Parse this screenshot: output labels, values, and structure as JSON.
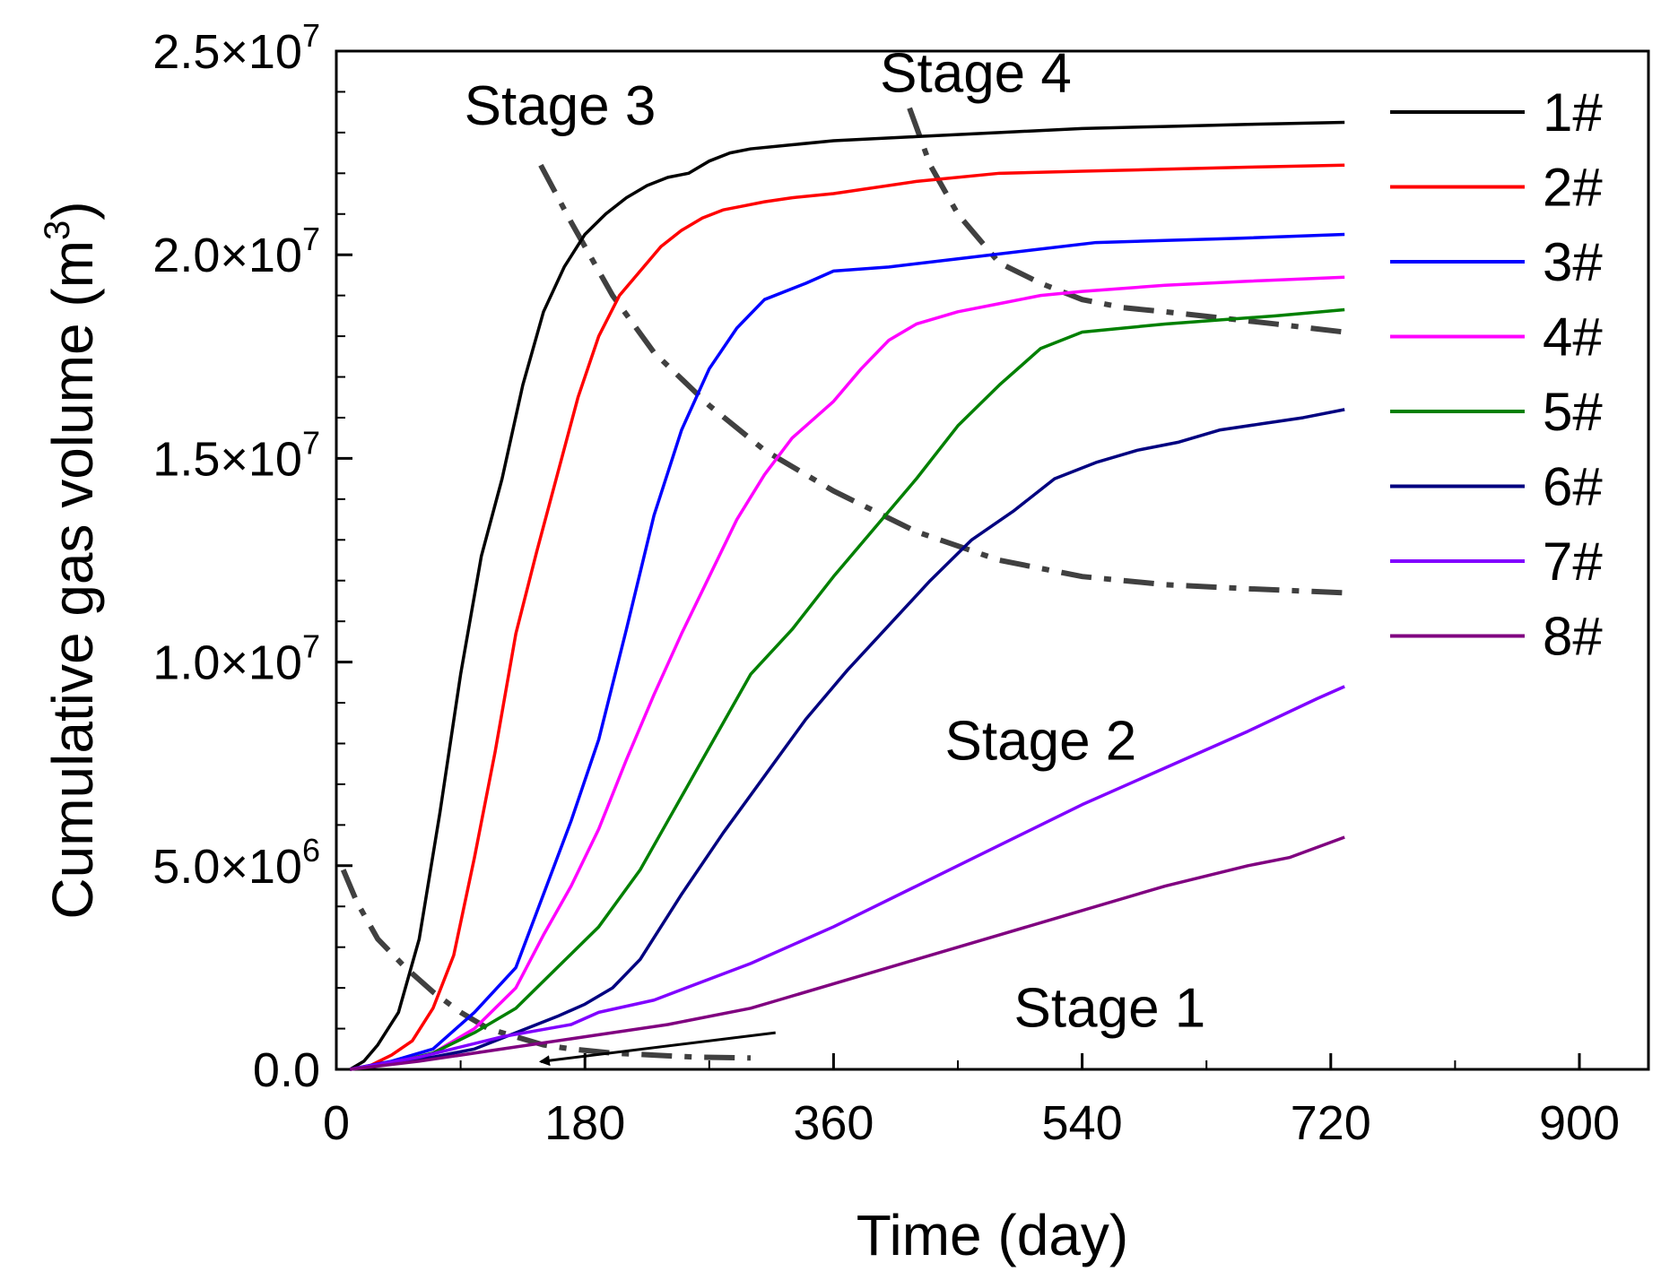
{
  "chart_data": {
    "type": "line",
    "xlabel": "Time (day)",
    "ylabel_main": "Cumulative gas volume (m",
    "ylabel_sup": "3",
    "ylabel_end": ")",
    "xlim": [
      0,
      950
    ],
    "ylim": [
      0,
      25000000
    ],
    "x_ticks": [
      {
        "value": 0,
        "label": "0"
      },
      {
        "value": 180,
        "label": "180"
      },
      {
        "value": 360,
        "label": "360"
      },
      {
        "value": 540,
        "label": "540"
      },
      {
        "value": 720,
        "label": "720"
      },
      {
        "value": 900,
        "label": "900"
      }
    ],
    "y_ticks": [
      {
        "value": 0,
        "mant": "0.0",
        "exp": ""
      },
      {
        "value": 5000000,
        "mant": "5.0×10",
        "exp": "6"
      },
      {
        "value": 10000000,
        "mant": "1.0×10",
        "exp": "7"
      },
      {
        "value": 15000000,
        "mant": "1.5×10",
        "exp": "7"
      },
      {
        "value": 20000000,
        "mant": "2.0×10",
        "exp": "7"
      },
      {
        "value": 25000000,
        "mant": "2.5×10",
        "exp": "7"
      }
    ],
    "grid": false,
    "legend_position": "top-right",
    "series": [
      {
        "name": "1#",
        "color": "#000000",
        "x": [
          10,
          20,
          30,
          45,
          60,
          75,
          90,
          105,
          120,
          135,
          150,
          165,
          180,
          195,
          210,
          225,
          240,
          255,
          270,
          285,
          300,
          330,
          360,
          420,
          480,
          540,
          600,
          660,
          730
        ],
        "y": [
          0,
          200000,
          600000,
          1400000,
          3200000,
          6300000,
          9700000,
          12600000,
          14500000,
          16800000,
          18600000,
          19700000,
          20500000,
          21000000,
          21400000,
          21700000,
          21900000,
          22000000,
          22300000,
          22500000,
          22600000,
          22700000,
          22800000,
          22900000,
          23000000,
          23100000,
          23150000,
          23200000,
          23250000
        ]
      },
      {
        "name": "2#",
        "color": "#ff0000",
        "x": [
          10,
          25,
          40,
          55,
          70,
          85,
          100,
          115,
          130,
          145,
          160,
          175,
          190,
          205,
          220,
          235,
          250,
          265,
          280,
          295,
          310,
          330,
          360,
          420,
          480,
          540,
          600,
          660,
          730
        ],
        "y": [
          0,
          100000,
          350000,
          700000,
          1500000,
          2800000,
          5200000,
          7800000,
          10700000,
          12700000,
          14600000,
          16500000,
          18000000,
          19000000,
          19600000,
          20200000,
          20600000,
          20900000,
          21100000,
          21200000,
          21300000,
          21400000,
          21500000,
          21800000,
          22000000,
          22050000,
          22100000,
          22150000,
          22200000
        ]
      },
      {
        "name": "3#",
        "color": "#0000ff",
        "x": [
          10,
          40,
          70,
          100,
          130,
          150,
          170,
          190,
          210,
          230,
          250,
          270,
          290,
          310,
          340,
          360,
          400,
          450,
          500,
          550,
          600,
          650,
          730
        ],
        "y": [
          0,
          200000,
          500000,
          1400000,
          2500000,
          4300000,
          6100000,
          8100000,
          10800000,
          13600000,
          15700000,
          17200000,
          18200000,
          18900000,
          19300000,
          19600000,
          19700000,
          19900000,
          20100000,
          20300000,
          20350000,
          20400000,
          20500000
        ]
      },
      {
        "name": "4#",
        "color": "#ff00ff",
        "x": [
          10,
          40,
          70,
          100,
          130,
          150,
          170,
          190,
          210,
          230,
          250,
          270,
          290,
          310,
          330,
          360,
          380,
          400,
          420,
          450,
          480,
          510,
          540,
          600,
          660,
          730
        ],
        "y": [
          0,
          150000,
          400000,
          1000000,
          2000000,
          3300000,
          4500000,
          5900000,
          7600000,
          9200000,
          10700000,
          12100000,
          13500000,
          14600000,
          15500000,
          16400000,
          17200000,
          17900000,
          18300000,
          18600000,
          18800000,
          19000000,
          19100000,
          19250000,
          19350000,
          19450000
        ]
      },
      {
        "name": "5#",
        "color": "#008000",
        "x": [
          10,
          40,
          70,
          100,
          130,
          160,
          190,
          220,
          240,
          260,
          280,
          300,
          330,
          360,
          390,
          420,
          450,
          480,
          510,
          540,
          570,
          600,
          640,
          680,
          730
        ],
        "y": [
          0,
          150000,
          400000,
          900000,
          1500000,
          2500000,
          3500000,
          4900000,
          6100000,
          7300000,
          8500000,
          9700000,
          10800000,
          12100000,
          13300000,
          14500000,
          15800000,
          16800000,
          17700000,
          18100000,
          18200000,
          18300000,
          18400000,
          18500000,
          18650000
        ]
      },
      {
        "name": "6#",
        "color": "#000080",
        "x": [
          10,
          40,
          70,
          100,
          130,
          160,
          180,
          200,
          220,
          250,
          280,
          310,
          340,
          370,
          400,
          430,
          460,
          490,
          520,
          550,
          580,
          610,
          640,
          670,
          700,
          730
        ],
        "y": [
          0,
          150000,
          300000,
          500000,
          900000,
          1300000,
          1600000,
          2000000,
          2700000,
          4300000,
          5800000,
          7200000,
          8600000,
          9800000,
          10900000,
          12000000,
          13000000,
          13700000,
          14500000,
          14900000,
          15200000,
          15400000,
          15700000,
          15850000,
          16000000,
          16200000
        ]
      },
      {
        "name": "7#",
        "color": "#8000ff",
        "x": [
          10,
          60,
          120,
          170,
          190,
          230,
          300,
          360,
          420,
          480,
          540,
          600,
          660,
          710,
          730
        ],
        "y": [
          0,
          300000,
          800000,
          1100000,
          1400000,
          1700000,
          2600000,
          3500000,
          4500000,
          5500000,
          6500000,
          7400000,
          8300000,
          9100000,
          9400000
        ]
      },
      {
        "name": "8#",
        "color": "#800080",
        "x": [
          10,
          60,
          120,
          180,
          240,
          300,
          320,
          360,
          420,
          480,
          540,
          600,
          660,
          690,
          730
        ],
        "y": [
          0,
          200000,
          500000,
          800000,
          1100000,
          1500000,
          1700000,
          2100000,
          2700000,
          3300000,
          3900000,
          4500000,
          5000000,
          5200000,
          5700000
        ]
      }
    ],
    "boundaries": [
      {
        "name": "stage-1-boundary",
        "x": [
          5,
          15,
          30,
          50,
          70,
          90,
          110,
          130,
          150,
          170,
          200,
          230,
          260,
          300
        ],
        "y": [
          4900000,
          4100000,
          3200000,
          2500000,
          1900000,
          1400000,
          1000000,
          800000,
          600000,
          500000,
          400000,
          350000,
          300000,
          280000
        ]
      },
      {
        "name": "stage-2-3-boundary",
        "x": [
          148,
          170,
          200,
          230,
          270,
          310,
          360,
          420,
          480,
          540,
          600,
          660,
          730
        ],
        "y": [
          22200000,
          20800000,
          19000000,
          17600000,
          16300000,
          15200000,
          14200000,
          13200000,
          12500000,
          12100000,
          11900000,
          11800000,
          11700000
        ]
      },
      {
        "name": "stage-3-4-boundary",
        "x": [
          415,
          430,
          450,
          480,
          510,
          540,
          570,
          600,
          640,
          680,
          730
        ],
        "y": [
          23600000,
          22200000,
          21000000,
          19800000,
          19300000,
          18900000,
          18700000,
          18600000,
          18450000,
          18300000,
          18100000
        ]
      }
    ],
    "annotations": [
      {
        "text": "Stage 1",
        "x": 560,
        "y": 1050000
      },
      {
        "text": "Stage 2",
        "x": 510,
        "y": 7600000
      },
      {
        "text": "Stage 3",
        "x": 162,
        "y": 23200000
      },
      {
        "text": "Stage 4",
        "x": 463,
        "y": 24000000
      }
    ],
    "arrow": {
      "from": [
        318,
        900000
      ],
      "to": [
        148,
        190000
      ]
    }
  }
}
